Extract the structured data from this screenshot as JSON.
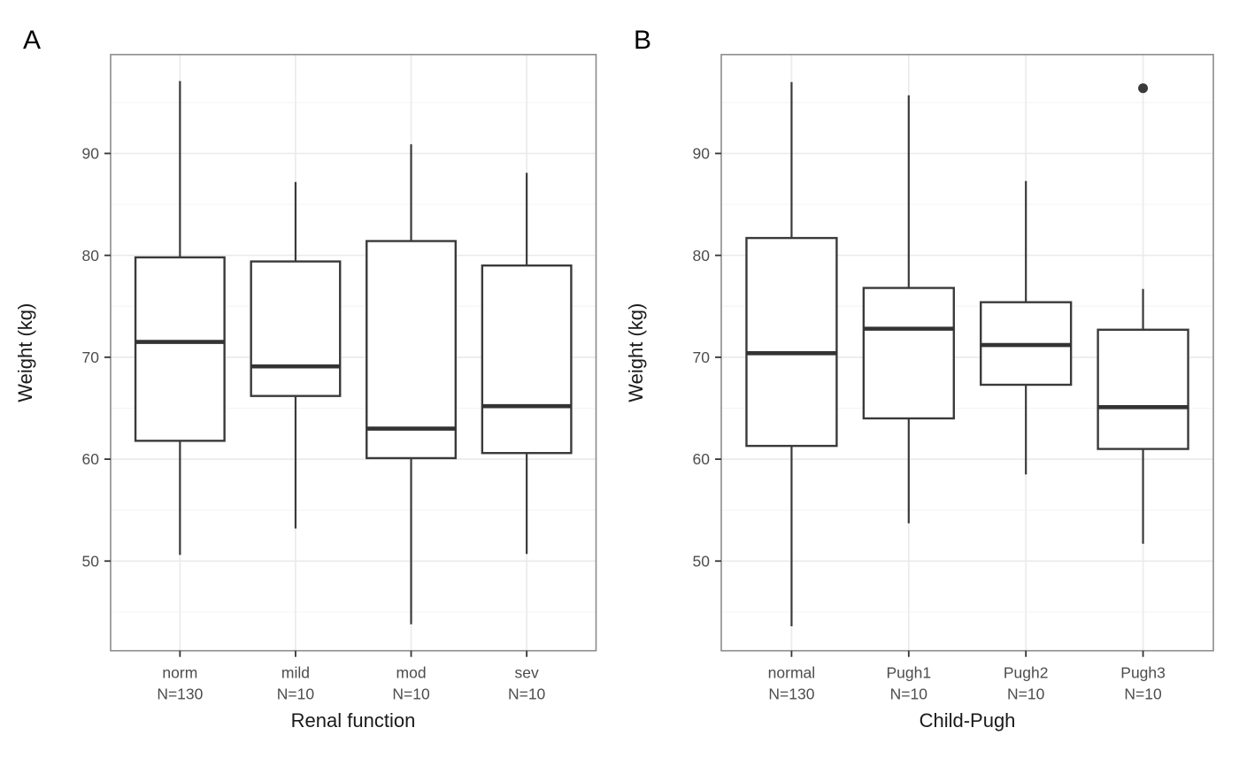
{
  "figure": {
    "background": "#ffffff"
  },
  "colors": {
    "box_stroke": "#3a3a3a",
    "box_fill": "#ffffff",
    "median": "#333333",
    "outlier": "#3a3a3a",
    "grid_major": "#ebebeb",
    "grid_minor": "#f5f5f5",
    "panel_border": "#8c8c8c",
    "tick_mark": "#333333",
    "tick_label": "#4d4d4d",
    "axis_title": "#1a1a1a",
    "panel_letter": "#000000"
  },
  "chart_data": [
    {
      "type": "boxplot",
      "panel": "A",
      "panel_letter": "A",
      "xlabel": "Renal function",
      "ylabel": "Weight (kg)",
      "ylim": [
        41.2,
        99.7
      ],
      "yticks": [
        50,
        60,
        70,
        80,
        90
      ],
      "grid": "on",
      "categories": [
        "norm",
        "mild",
        "mod",
        "sev"
      ],
      "boxes": [
        {
          "label": "norm",
          "n_label": "N=130",
          "whisker_low": 50.6,
          "q1": 61.8,
          "median": 71.5,
          "q3": 79.8,
          "whisker_high": 97.1,
          "outliers": []
        },
        {
          "label": "mild",
          "n_label": "N=10",
          "whisker_low": 53.2,
          "q1": 66.2,
          "median": 69.1,
          "q3": 79.4,
          "whisker_high": 87.2,
          "outliers": []
        },
        {
          "label": "mod",
          "n_label": "N=10",
          "whisker_low": 43.8,
          "q1": 60.1,
          "median": 63.0,
          "q3": 81.4,
          "whisker_high": 90.9,
          "outliers": []
        },
        {
          "label": "sev",
          "n_label": "N=10",
          "whisker_low": 50.7,
          "q1": 60.6,
          "median": 65.2,
          "q3": 79.0,
          "whisker_high": 88.1,
          "outliers": []
        }
      ]
    },
    {
      "type": "boxplot",
      "panel": "B",
      "panel_letter": "B",
      "xlabel": "Child-Pugh",
      "ylabel": "Weight (kg)",
      "ylim": [
        41.2,
        99.7
      ],
      "yticks": [
        50,
        60,
        70,
        80,
        90
      ],
      "grid": "on",
      "categories": [
        "normal",
        "Pugh1",
        "Pugh2",
        "Pugh3"
      ],
      "boxes": [
        {
          "label": "normal",
          "n_label": "N=130",
          "whisker_low": 43.6,
          "q1": 61.3,
          "median": 70.4,
          "q3": 81.7,
          "whisker_high": 97.0,
          "outliers": []
        },
        {
          "label": "Pugh1",
          "n_label": "N=10",
          "whisker_low": 53.7,
          "q1": 64.0,
          "median": 72.8,
          "q3": 76.8,
          "whisker_high": 95.7,
          "outliers": []
        },
        {
          "label": "Pugh2",
          "n_label": "N=10",
          "whisker_low": 58.5,
          "q1": 67.3,
          "median": 71.2,
          "q3": 75.4,
          "whisker_high": 87.3,
          "outliers": []
        },
        {
          "label": "Pugh3",
          "n_label": "N=10",
          "whisker_low": 51.7,
          "q1": 61.0,
          "median": 65.1,
          "q3": 72.7,
          "whisker_high": 76.7,
          "outliers": [
            96.4
          ]
        }
      ]
    }
  ]
}
